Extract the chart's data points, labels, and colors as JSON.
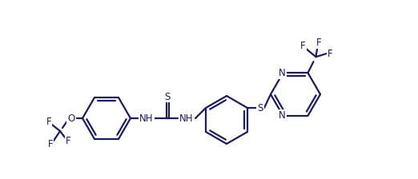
{
  "background": "#ffffff",
  "line_color": "#1c1c5a",
  "line_width": 1.6,
  "font_size": 8.5,
  "fig_width": 5.22,
  "fig_height": 2.24,
  "dpi": 100,
  "xlim": [
    0,
    522
  ],
  "ylim": [
    0,
    224
  ]
}
